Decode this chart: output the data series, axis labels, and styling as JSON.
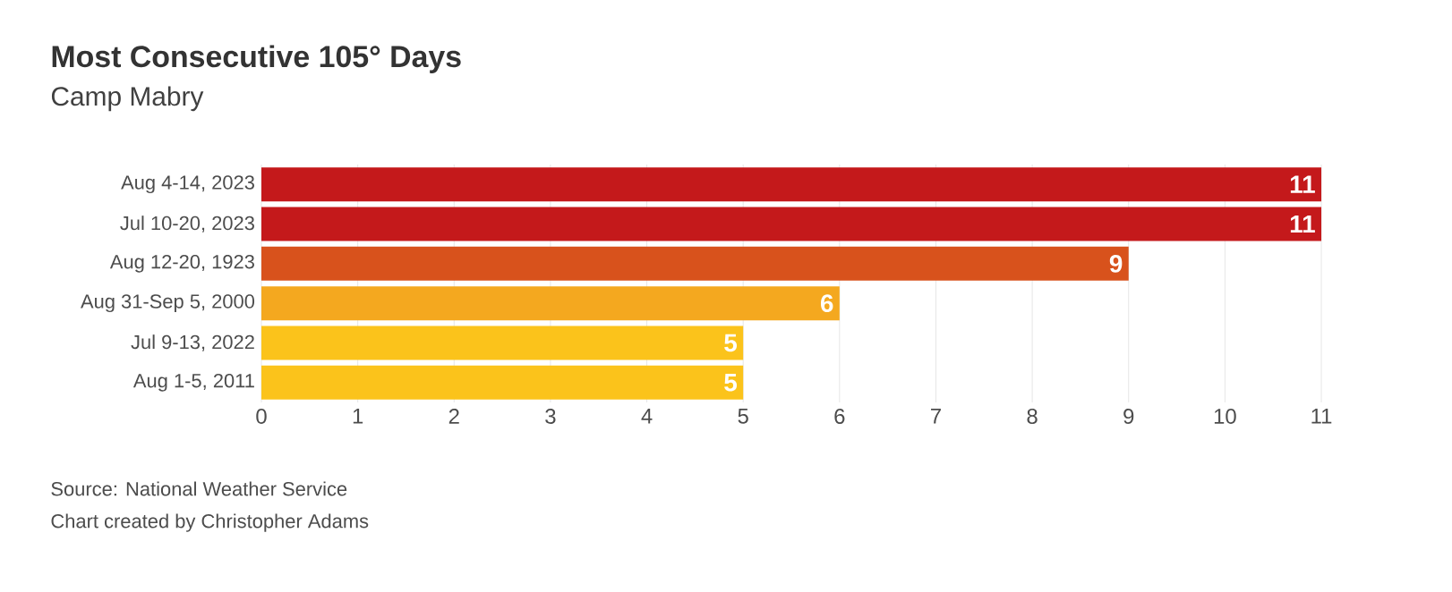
{
  "chart_data": {
    "type": "bar",
    "orientation": "horizontal",
    "title": "Most Consecutive 105° Days",
    "subtitle": "Camp Mabry",
    "categories": [
      "Aug 4-14, 2023",
      "Jul 10-20, 2023",
      "Aug 12-20, 1923",
      "Aug 31-Sep 5, 2000",
      "Jul 9-13, 2022",
      "Aug 1-5, 2011"
    ],
    "values": [
      11,
      11,
      9,
      6,
      5,
      5
    ],
    "value_labels": [
      "11",
      "11",
      "9",
      "6",
      "5",
      "5"
    ],
    "colors": [
      "#c4191b",
      "#c4191b",
      "#d8521c",
      "#f4a81f",
      "#fbc31b",
      "#fbc31b"
    ],
    "xlim": [
      0,
      11
    ],
    "xticks": [
      0,
      1,
      2,
      3,
      4,
      5,
      6,
      7,
      8,
      9,
      10,
      11
    ],
    "grid": "x",
    "annotations": [
      "Source: National Weather Service",
      "Chart created by Christopher Adams"
    ]
  }
}
